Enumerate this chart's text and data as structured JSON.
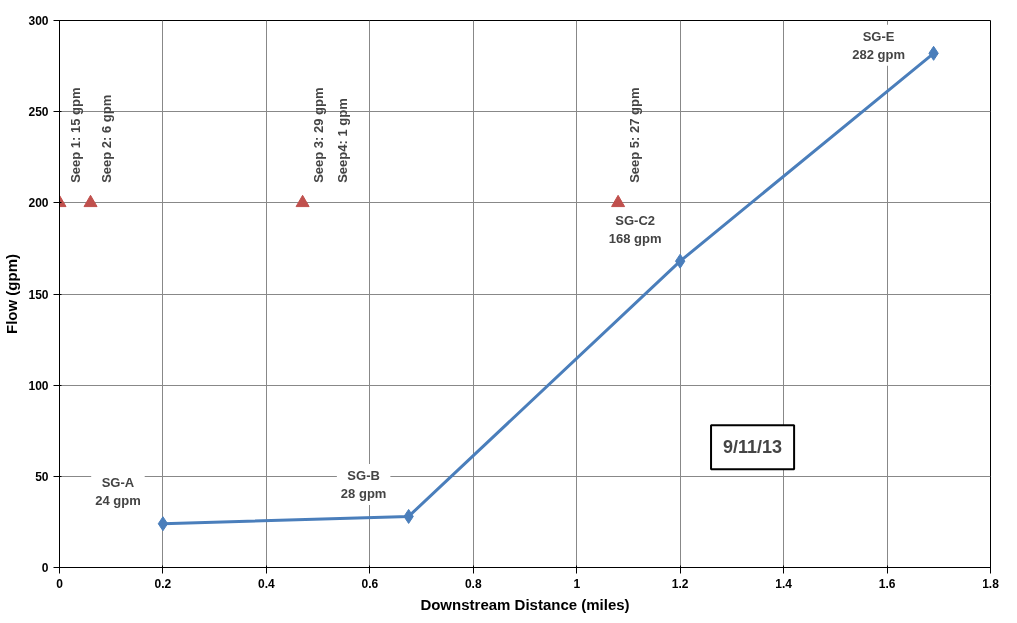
{
  "chart_data": {
    "type": "line",
    "xlabel": "Downstream Distance (miles)",
    "ylabel": "Flow (gpm)",
    "xlim": [
      0,
      1.8
    ],
    "xticks": [
      0,
      0.2,
      0.4,
      0.6,
      0.8,
      1,
      1.2,
      1.4,
      1.6,
      1.8
    ],
    "ylim": [
      0,
      300
    ],
    "yticks": [
      0,
      50,
      100,
      150,
      200,
      250,
      300
    ],
    "grid": true,
    "series": [
      {
        "color": "#4a7ebb",
        "marker": "diamond",
        "x": [
          0.2,
          0.675,
          1.2,
          1.69
        ],
        "values": [
          24,
          28,
          168,
          282
        ]
      },
      {
        "type": "scatter",
        "color": "#c0504d",
        "marker": "triangle",
        "x": [
          0,
          0.06,
          0.47,
          1.08
        ],
        "values": [
          200,
          200,
          200,
          200
        ]
      }
    ],
    "annotations": [
      {
        "text": "SG-A\n24 gpm",
        "x": 0.2,
        "y": 24
      },
      {
        "text": "SG-B\n28 gpm",
        "x": 0.675,
        "y": 28
      },
      {
        "text": "SG-C2\n168 gpm",
        "x": 1.2,
        "y": 168
      },
      {
        "text": "SG-E\n282 gpm",
        "x": 1.69,
        "y": 282
      },
      {
        "text": "Seep 1: 15 gpm",
        "x": 0,
        "y": 200
      },
      {
        "text": "Seep 2: 6 gpm",
        "x": 0.06,
        "y": 200
      },
      {
        "text": "Seep 3: 29 gpm",
        "x": 0.47,
        "y": 200
      },
      {
        "text": "Seep4: 1 gpm",
        "x": 0.47,
        "y": 200
      },
      {
        "text": "Seep 5: 27 gpm",
        "x": 1.08,
        "y": 200
      },
      "9/11/13"
    ]
  }
}
